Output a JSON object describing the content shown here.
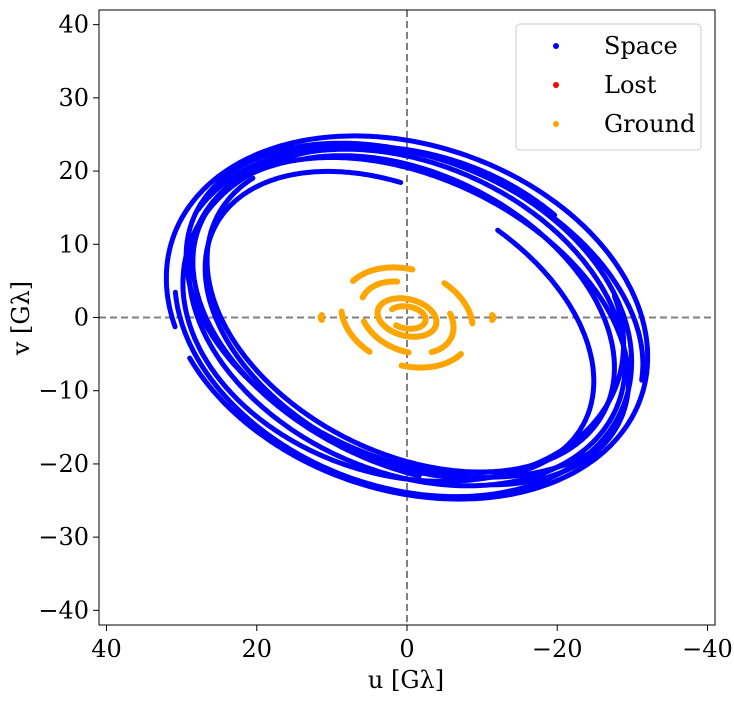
{
  "chart_data": {
    "type": "scatter",
    "title": "",
    "xlabel": "u [Gλ]",
    "ylabel": "v [Gλ]",
    "xlim": [
      41,
      -41
    ],
    "ylim": [
      -42,
      42
    ],
    "x_ticks": [
      40,
      20,
      0,
      -20,
      -40
    ],
    "x_tick_labels": [
      "40",
      "20",
      "0",
      "−20",
      "−40"
    ],
    "y_ticks": [
      40,
      30,
      20,
      10,
      0,
      -10,
      -20,
      -30,
      -40
    ],
    "y_tick_labels": [
      "40",
      "30",
      "20",
      "10",
      "0",
      "−10",
      "−20",
      "−30",
      "−40"
    ],
    "reference_lines": {
      "x": 0,
      "y": 0,
      "style": "dashed",
      "color": "#808080"
    },
    "grid": false,
    "legend_position": "top-right",
    "series": [
      {
        "name": "Space",
        "color": "#0000ff",
        "shape": "elliptical-tracks",
        "tracks": [
          {
            "a": 30.5,
            "b": 21.0,
            "angle_deg": 25,
            "cx": 0.0,
            "cy": 0.0,
            "start_deg": -60,
            "end_deg": 300
          },
          {
            "a": 31.5,
            "b": 22.5,
            "angle_deg": 22,
            "cx": 0.5,
            "cy": -0.5,
            "start_deg": 10,
            "end_deg": 340
          },
          {
            "a": 29.0,
            "b": 19.0,
            "angle_deg": 28,
            "cx": -0.5,
            "cy": 0.5,
            "start_deg": 40,
            "end_deg": 380
          },
          {
            "a": 33.0,
            "b": 23.5,
            "angle_deg": 20,
            "cx": 0.0,
            "cy": 0.0,
            "start_deg": -30,
            "end_deg": 320
          },
          {
            "a": 28.0,
            "b": 18.0,
            "angle_deg": 30,
            "cx": 1.0,
            "cy": -1.0,
            "start_deg": 100,
            "end_deg": 430
          },
          {
            "a": 32.0,
            "b": 20.5,
            "angle_deg": 24,
            "cx": -1.0,
            "cy": 1.0,
            "start_deg": 200,
            "end_deg": 530
          },
          {
            "a": 30.0,
            "b": 22.0,
            "angle_deg": 18,
            "cx": 0.5,
            "cy": 0.5,
            "start_deg": 150,
            "end_deg": 480
          },
          {
            "a": 31.0,
            "b": 19.5,
            "angle_deg": 27,
            "cx": -0.5,
            "cy": -0.5,
            "start_deg": 250,
            "end_deg": 590
          }
        ]
      },
      {
        "name": "Lost",
        "color": "#ff0000",
        "shape": "points",
        "points": []
      },
      {
        "name": "Ground",
        "color": "#ffa500",
        "shape": "elliptical-tracks",
        "tracks": [
          {
            "a": 9.0,
            "b": 6.5,
            "angle_deg": 20,
            "cx": 0.0,
            "cy": 0.0,
            "start_deg": 20,
            "end_deg": 80
          },
          {
            "a": 9.0,
            "b": 6.5,
            "angle_deg": 20,
            "cx": 0.0,
            "cy": 0.0,
            "start_deg": 110,
            "end_deg": 160
          },
          {
            "a": 9.0,
            "b": 6.5,
            "angle_deg": 20,
            "cx": 0.0,
            "cy": 0.0,
            "start_deg": 200,
            "end_deg": 260
          },
          {
            "a": 9.0,
            "b": 6.5,
            "angle_deg": 20,
            "cx": 0.0,
            "cy": 0.0,
            "start_deg": 290,
            "end_deg": 340
          },
          {
            "a": 6.5,
            "b": 4.5,
            "angle_deg": 25,
            "cx": 0.0,
            "cy": 0.0,
            "start_deg": 0,
            "end_deg": 60
          },
          {
            "a": 6.5,
            "b": 4.5,
            "angle_deg": 25,
            "cx": 0.0,
            "cy": 0.0,
            "start_deg": 140,
            "end_deg": 220
          },
          {
            "a": 6.5,
            "b": 4.5,
            "angle_deg": 25,
            "cx": 0.0,
            "cy": 0.0,
            "start_deg": 250,
            "end_deg": 320
          },
          {
            "a": 4.0,
            "b": 2.5,
            "angle_deg": 15,
            "cx": 0.0,
            "cy": 0.0,
            "start_deg": 0,
            "end_deg": 360
          },
          {
            "a": 2.5,
            "b": 1.5,
            "angle_deg": 10,
            "cx": 0.0,
            "cy": 0.0,
            "start_deg": 30,
            "end_deg": 300
          },
          {
            "a": 11.5,
            "b": 2.0,
            "angle_deg": 0,
            "cx": 0.0,
            "cy": 0.0,
            "start_deg": 170,
            "end_deg": 190
          },
          {
            "a": 11.5,
            "b": 2.0,
            "angle_deg": 0,
            "cx": 0.0,
            "cy": 0.0,
            "start_deg": -10,
            "end_deg": 10
          }
        ]
      }
    ]
  }
}
